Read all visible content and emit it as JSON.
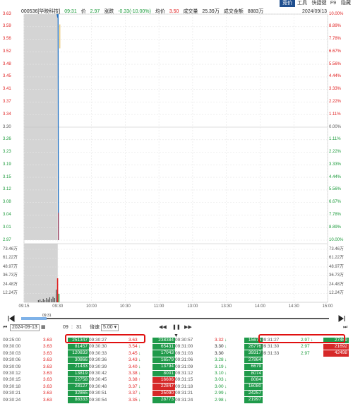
{
  "toolbar": {
    "tabs": [
      {
        "label": "竞价",
        "active": true
      },
      {
        "label": "工具",
        "active": false
      },
      {
        "label": "快捷键",
        "active": false
      },
      {
        "label": "F9",
        "active": false
      },
      {
        "label": "隐藏",
        "active": false
      }
    ]
  },
  "info": {
    "stock": "000536[华映科技]",
    "time": "09:31",
    "price_label": "价",
    "price": "2.97",
    "change_label": "涨跌",
    "change": "-0.33(-10.00%)",
    "avg_label": "均价",
    "avg": "3.50",
    "volume_label": "成交量",
    "volume": "25.39万",
    "amount_label": "成交金额",
    "amount": "8883万",
    "date": "2024/09/13"
  },
  "colors": {
    "up": "#e02020",
    "down": "#1a9a3a",
    "neutral": "#555555",
    "price_line": "#1f6fc0",
    "avg_line": "#e0b040",
    "auction_fill": "#d4d4d4",
    "highlight": "#e01010"
  },
  "chart_data": {
    "type": "line",
    "title": "",
    "y_price_ticks": [
      "3.63",
      "3.59",
      "3.56",
      "3.52",
      "3.48",
      "3.45",
      "3.41",
      "3.37",
      "3.34",
      "3.30",
      "3.26",
      "3.23",
      "3.19",
      "3.15",
      "3.12",
      "3.08",
      "3.04",
      "3.01",
      "2.97"
    ],
    "y_pct_ticks": [
      "10.00%",
      "8.89%",
      "7.78%",
      "6.67%",
      "5.56%",
      "4.44%",
      "3.33%",
      "2.22%",
      "1.11%",
      "0.00%",
      "1.11%",
      "2.22%",
      "3.33%",
      "4.44%",
      "5.56%",
      "6.67%",
      "7.78%",
      "8.89%",
      "10.00%"
    ],
    "y_price_prev_close": 3.3,
    "ylim": [
      2.97,
      3.63
    ],
    "vol_ticks": [
      "73.46万",
      "61.22万",
      "48.97万",
      "36.73万",
      "24.48万",
      "12.24万"
    ],
    "x_ticks": [
      "09:15",
      "09:30",
      "10:00",
      "10:30",
      "11:00",
      "13:00",
      "13:30",
      "14:00",
      "14:30",
      "15:00"
    ],
    "series": [
      {
        "x": [
          "09:30",
          "09:30",
          "09:31",
          "09:31"
        ],
        "values": [
          3.63,
          3.62,
          3.63,
          2.97
        ]
      }
    ]
  },
  "scrub": {
    "time": "09:31"
  },
  "controls": {
    "date": "2024-09-13",
    "calendar_icon": "calendar-icon",
    "hour": "09",
    "minute": "31",
    "speed_label": "倍速",
    "speed": "5.00"
  },
  "trades": [
    {
      "cols": [
        {
          "time": "09:25:00",
          "price": "3.63",
          "vol": "251347",
          "vc": "g",
          "dir": "",
          "pc": "red"
        },
        {
          "time": "09:30:00",
          "price": "3.63",
          "vol": "81457",
          "vc": "g",
          "dir": "",
          "pc": "red"
        },
        {
          "time": "09:30:03",
          "price": "3.63",
          "vol": "120833",
          "vc": "g",
          "dir": "",
          "pc": "red"
        },
        {
          "time": "09:30:06",
          "price": "3.63",
          "vol": "30866",
          "vc": "g",
          "dir": "",
          "pc": "red"
        },
        {
          "time": "09:30:09",
          "price": "3.63",
          "vol": "21433",
          "vc": "g",
          "dir": "",
          "pc": "red"
        },
        {
          "time": "09:30:12",
          "price": "3.63",
          "vol": "13819",
          "vc": "g",
          "dir": "",
          "pc": "red"
        },
        {
          "time": "09:30:15",
          "price": "3.63",
          "vol": "22758",
          "vc": "g",
          "dir": "",
          "pc": "red"
        },
        {
          "time": "09:30:18",
          "price": "3.63",
          "vol": "28127",
          "vc": "g",
          "dir": "",
          "pc": "red"
        },
        {
          "time": "09:30:21",
          "price": "3.63",
          "vol": "32865",
          "vc": "g",
          "dir": "",
          "pc": "red"
        },
        {
          "time": "09:30:24",
          "price": "3.63",
          "vol": "88333",
          "vc": "g",
          "dir": "",
          "pc": "red"
        }
      ]
    },
    {
      "cols": [
        {
          "time": "09:30:27",
          "price": "3.63",
          "vol": "238384",
          "vc": "g",
          "dir": "",
          "pc": "red"
        },
        {
          "time": "09:30:30",
          "price": "3.54",
          "vol": "65431",
          "vc": "g",
          "dir": "↓",
          "pc": "red"
        },
        {
          "time": "09:30:33",
          "price": "3.45",
          "vol": "17043",
          "vc": "g",
          "dir": "↓",
          "pc": "red"
        },
        {
          "time": "09:30:36",
          "price": "3.43",
          "vol": "16579",
          "vc": "g",
          "dir": "↓",
          "pc": "red"
        },
        {
          "time": "09:30:39",
          "price": "3.40",
          "vol": "13794",
          "vc": "g",
          "dir": "↓",
          "pc": "red"
        },
        {
          "time": "09:30:42",
          "price": "3.38",
          "vol": "8001",
          "vc": "g",
          "dir": "↓",
          "pc": "red"
        },
        {
          "time": "09:30:45",
          "price": "3.38",
          "vol": "16606",
          "vc": "r",
          "dir": "↑",
          "pc": "red"
        },
        {
          "time": "09:30:48",
          "price": "3.37",
          "vol": "22847",
          "vc": "r",
          "dir": "↓",
          "pc": "red"
        },
        {
          "time": "09:30:51",
          "price": "3.37",
          "vol": "25090",
          "vc": "r",
          "dir": "↓",
          "pc": "red"
        },
        {
          "time": "09:30:54",
          "price": "3.35",
          "vol": "28773",
          "vc": "g",
          "dir": "↓",
          "pc": "red"
        }
      ]
    },
    {
      "cols": [
        {
          "time": "09:30:57",
          "price": "3.32",
          "vol": "15676",
          "vc": "g",
          "dir": "↓",
          "pc": "red"
        },
        {
          "time": "09:31:00",
          "price": "3.30",
          "vol": "26776",
          "vc": "g",
          "dir": "↓",
          "pc": "dark"
        },
        {
          "time": "09:31:03",
          "price": "3.30",
          "vol": "39317",
          "vc": "g",
          "dir": "",
          "pc": "dark"
        },
        {
          "time": "09:31:06",
          "price": "3.28",
          "vol": "27864",
          "vc": "g",
          "dir": "↓",
          "pc": "green"
        },
        {
          "time": "09:31:09",
          "price": "3.19",
          "vol": "6679",
          "vc": "g",
          "dir": "↓",
          "pc": "green"
        },
        {
          "time": "09:31:12",
          "price": "3.10",
          "vol": "8074",
          "vc": "g",
          "dir": "↓",
          "pc": "green"
        },
        {
          "time": "09:31:15",
          "price": "3.03",
          "vol": "8084",
          "vc": "g",
          "dir": "↓",
          "pc": "green"
        },
        {
          "time": "09:31:18",
          "price": "3.00",
          "vol": "16080",
          "vc": "g",
          "dir": "↓",
          "pc": "green"
        },
        {
          "time": "09:31:21",
          "price": "2.99",
          "vol": "24257",
          "vc": "g",
          "dir": "↓",
          "pc": "green"
        },
        {
          "time": "09:31:24",
          "price": "2.98",
          "vol": "21997",
          "vc": "g",
          "dir": "↓",
          "pc": "green"
        }
      ]
    },
    {
      "cols": [
        {
          "time": "09:31:27",
          "price": "2.97",
          "vol": "27469",
          "vc": "g",
          "dir": "↓",
          "pc": "green"
        },
        {
          "time": "09:31:30",
          "price": "2.97",
          "vol": "21692",
          "vc": "r",
          "dir": "",
          "pc": "green"
        },
        {
          "time": "09:31:33",
          "price": "2.97",
          "vol": "42498",
          "vc": "r",
          "dir": "",
          "pc": "green"
        }
      ]
    }
  ]
}
